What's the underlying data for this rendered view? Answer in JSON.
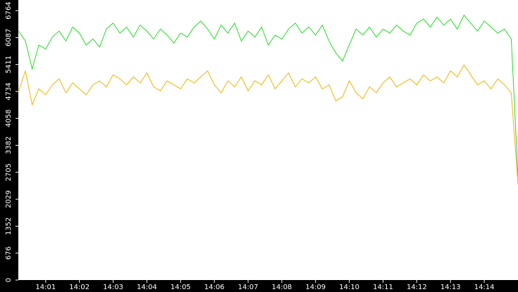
{
  "chart_data": {
    "type": "line",
    "x": [
      0.2,
      0.4,
      0.6,
      0.8,
      1.0,
      1.2,
      1.4,
      1.6,
      1.8,
      2.0,
      2.2,
      2.4,
      2.6,
      2.8,
      3.0,
      3.2,
      3.4,
      3.6,
      3.8,
      4.0,
      4.2,
      4.4,
      4.6,
      4.8,
      5.0,
      5.2,
      5.4,
      5.6,
      5.8,
      6.0,
      6.2,
      6.4,
      6.6,
      6.8,
      7.0,
      7.2,
      7.4,
      7.6,
      7.8,
      8.0,
      8.2,
      8.4,
      8.6,
      8.8,
      9.0,
      9.2,
      9.4,
      9.6,
      9.8,
      10.0,
      10.2,
      10.4,
      10.6,
      10.8,
      11.0,
      11.2,
      11.4,
      11.6,
      11.8,
      12.0,
      12.2,
      12.4,
      12.6,
      12.8,
      13.0,
      13.2,
      13.4,
      13.6,
      13.8,
      14.0,
      14.2,
      14.4,
      14.6,
      14.8,
      15.0
    ],
    "series": [
      {
        "color": "#22dd22",
        "values": [
          6250,
          6000,
          5300,
          5900,
          5800,
          6100,
          6250,
          6000,
          6350,
          6200,
          5900,
          6050,
          5850,
          6300,
          6450,
          6200,
          6350,
          6100,
          6400,
          6250,
          6050,
          6300,
          6150,
          5950,
          6200,
          6100,
          6350,
          6500,
          6300,
          6050,
          6400,
          6200,
          6450,
          6000,
          6250,
          6100,
          6350,
          5900,
          6150,
          6050,
          6300,
          6450,
          6200,
          6350,
          6150,
          6400,
          6000,
          5700,
          5500,
          5900,
          6300,
          6150,
          6350,
          6100,
          6300,
          6200,
          6400,
          6250,
          6150,
          6450,
          6550,
          6350,
          6600,
          6400,
          6550,
          6300,
          6650,
          6450,
          6250,
          6500,
          6350,
          6200,
          6300,
          6050,
          2600
        ]
      },
      {
        "color": "#f0b400",
        "values": [
          4750,
          5250,
          4400,
          4800,
          4650,
          4900,
          5050,
          4700,
          4950,
          4800,
          4650,
          4900,
          5000,
          4850,
          5150,
          5050,
          4900,
          5100,
          4950,
          5200,
          4850,
          4750,
          5000,
          4900,
          4800,
          5050,
          4950,
          5100,
          5250,
          4900,
          4700,
          5000,
          4850,
          5100,
          4750,
          5000,
          4900,
          5150,
          4800,
          5000,
          5200,
          4850,
          5050,
          4950,
          5100,
          4800,
          4900,
          4500,
          4600,
          5000,
          4700,
          4550,
          4850,
          4700,
          4950,
          5100,
          4850,
          4950,
          5050,
          4900,
          5150,
          5000,
          5100,
          4950,
          5250,
          5100,
          5400,
          5150,
          4900,
          5000,
          4800,
          5050,
          4900,
          4700,
          2400
        ]
      }
    ],
    "xlim": [
      0.19,
      15.0
    ],
    "xticks": [
      {
        "value": 1,
        "label": "14:01"
      },
      {
        "value": 2,
        "label": "14:02"
      },
      {
        "value": 3,
        "label": "14:03"
      },
      {
        "value": 4,
        "label": "14:04"
      },
      {
        "value": 5,
        "label": "14:05"
      },
      {
        "value": 6,
        "label": "14:06"
      },
      {
        "value": 7,
        "label": "14:07"
      },
      {
        "value": 8,
        "label": "14:08"
      },
      {
        "value": 9,
        "label": "14:09"
      },
      {
        "value": 10,
        "label": "14:10"
      },
      {
        "value": 11,
        "label": "14:11"
      },
      {
        "value": 12,
        "label": "14:12"
      },
      {
        "value": 13,
        "label": "14:13"
      },
      {
        "value": 14,
        "label": "14:14"
      }
    ],
    "ylim": [
      0,
      7030
    ],
    "yticks": [
      0,
      676,
      1352,
      2029,
      2705,
      3382,
      4058,
      4734,
      5411,
      6087,
      6764
    ]
  }
}
